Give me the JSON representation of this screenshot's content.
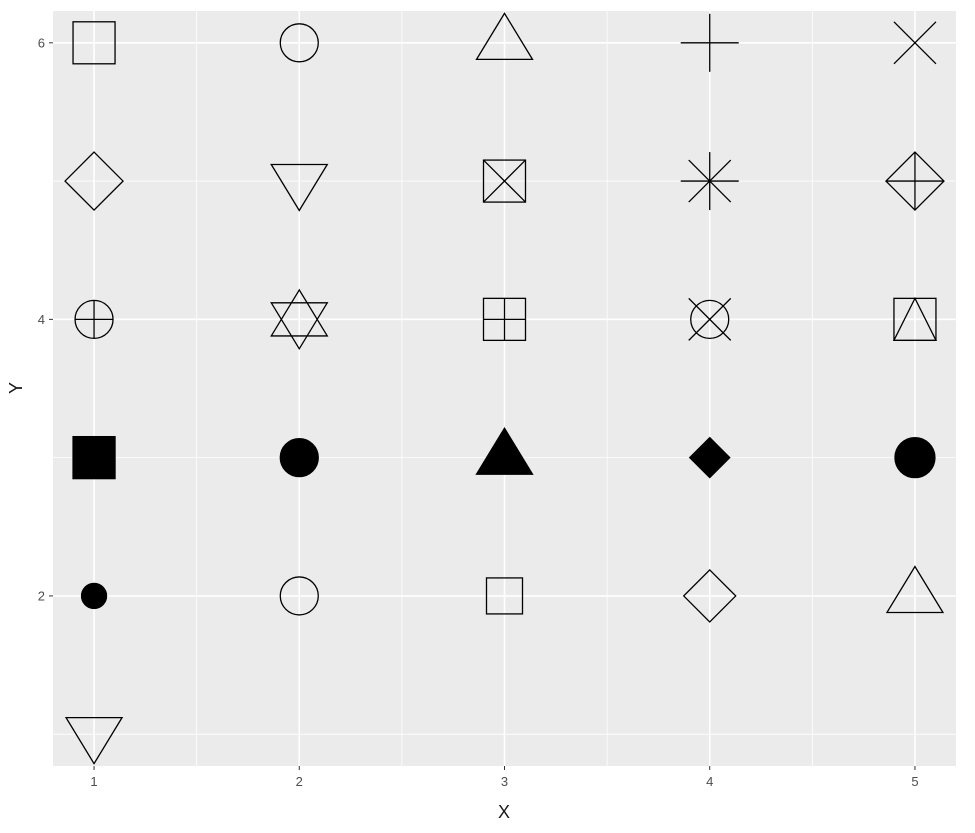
{
  "chart_data": {
    "type": "scatter",
    "xlabel": "X",
    "ylabel": "Y",
    "xlim": [
      0.8,
      5.2
    ],
    "ylim": [
      0.77,
      6.23
    ],
    "x_ticks": [
      1,
      2,
      3,
      4,
      5
    ],
    "y_ticks": [
      2,
      4,
      6
    ],
    "grid": true,
    "panel_background": "#ebebeb",
    "grid_color": "#ffffff",
    "point_color": "#000000",
    "points": [
      {
        "x": 1,
        "y": 6,
        "shape": 0
      },
      {
        "x": 2,
        "y": 6,
        "shape": 1
      },
      {
        "x": 3,
        "y": 6,
        "shape": 2
      },
      {
        "x": 4,
        "y": 6,
        "shape": 3
      },
      {
        "x": 5,
        "y": 6,
        "shape": 4
      },
      {
        "x": 1,
        "y": 5,
        "shape": 5
      },
      {
        "x": 2,
        "y": 5,
        "shape": 6
      },
      {
        "x": 3,
        "y": 5,
        "shape": 7
      },
      {
        "x": 4,
        "y": 5,
        "shape": 8
      },
      {
        "x": 5,
        "y": 5,
        "shape": 9
      },
      {
        "x": 1,
        "y": 4,
        "shape": 10
      },
      {
        "x": 2,
        "y": 4,
        "shape": 11
      },
      {
        "x": 3,
        "y": 4,
        "shape": 12
      },
      {
        "x": 4,
        "y": 4,
        "shape": 13
      },
      {
        "x": 5,
        "y": 4,
        "shape": 14
      },
      {
        "x": 1,
        "y": 3,
        "shape": 15
      },
      {
        "x": 2,
        "y": 3,
        "shape": 16
      },
      {
        "x": 3,
        "y": 3,
        "shape": 17
      },
      {
        "x": 4,
        "y": 3,
        "shape": 18
      },
      {
        "x": 5,
        "y": 3,
        "shape": 19
      },
      {
        "x": 1,
        "y": 2,
        "shape": 20
      },
      {
        "x": 2,
        "y": 2,
        "shape": 21
      },
      {
        "x": 3,
        "y": 2,
        "shape": 22
      },
      {
        "x": 4,
        "y": 2,
        "shape": 23
      },
      {
        "x": 5,
        "y": 2,
        "shape": 24
      },
      {
        "x": 1,
        "y": 1,
        "shape": 25
      }
    ]
  }
}
